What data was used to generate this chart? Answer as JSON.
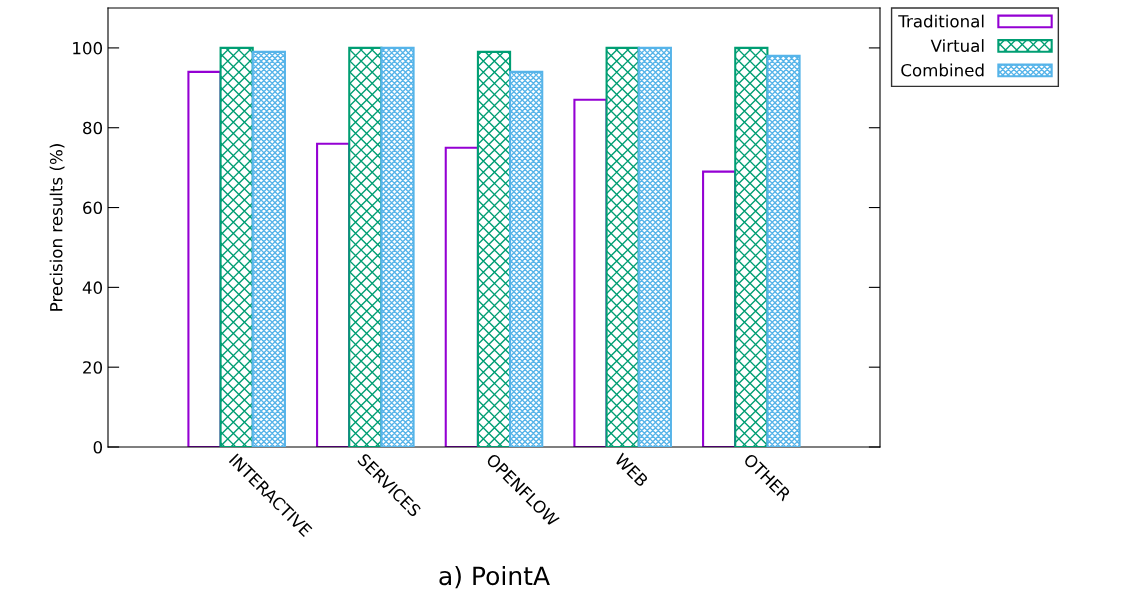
{
  "chart_data": {
    "type": "bar",
    "ylabel": "Precision results (%)",
    "categories": [
      "INTERACTIVE",
      "SERVICES",
      "OPENFLOW",
      "WEB",
      "OTHER"
    ],
    "series": [
      {
        "name": "Traditional",
        "color": "#9400d3",
        "values": [
          94,
          76,
          75,
          87,
          69
        ]
      },
      {
        "name": "Virtual",
        "color": "#009e73",
        "values": [
          100,
          100,
          99,
          100,
          100
        ]
      },
      {
        "name": "Combined",
        "color": "#56b4e9",
        "values": [
          99,
          100,
          94,
          100,
          98
        ]
      }
    ],
    "ylim": [
      0,
      110
    ],
    "yticks": [
      0,
      20,
      40,
      60,
      80,
      100
    ],
    "grid": false,
    "legend": "top right",
    "annotations": [
      "a) PointA"
    ]
  }
}
